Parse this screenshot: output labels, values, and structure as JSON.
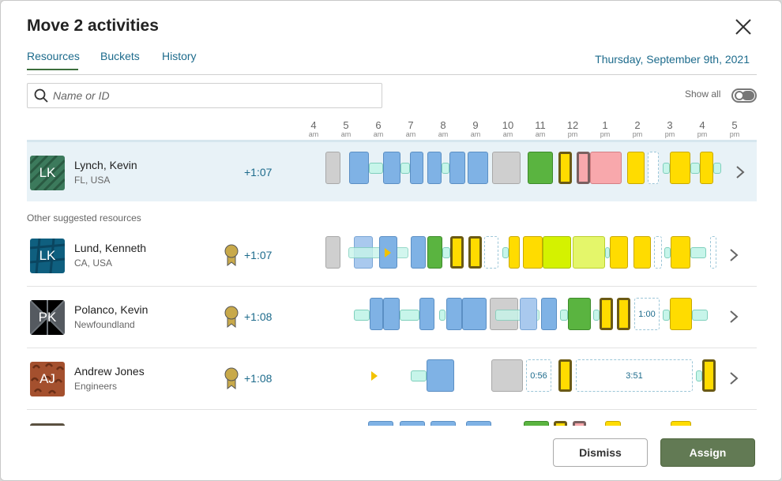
{
  "dialog": {
    "title": "Move 2 activities",
    "date": "Thursday, September 9th, 2021"
  },
  "tabs": [
    {
      "label": "Resources"
    },
    {
      "label": "Buckets"
    },
    {
      "label": "History"
    }
  ],
  "search": {
    "placeholder": "Name or ID",
    "value": ""
  },
  "show_all": {
    "label": "Show all",
    "on": false
  },
  "hours": [
    {
      "h": "4",
      "ap": "am"
    },
    {
      "h": "5",
      "ap": "am"
    },
    {
      "h": "6",
      "ap": "am"
    },
    {
      "h": "7",
      "ap": "am"
    },
    {
      "h": "8",
      "ap": "am"
    },
    {
      "h": "9",
      "ap": "am"
    },
    {
      "h": "10",
      "ap": "am"
    },
    {
      "h": "11",
      "ap": "am"
    },
    {
      "h": "12",
      "ap": "pm"
    },
    {
      "h": "1",
      "ap": "pm"
    },
    {
      "h": "2",
      "ap": "pm"
    },
    {
      "h": "3",
      "ap": "pm"
    },
    {
      "h": "4",
      "ap": "pm"
    },
    {
      "h": "5",
      "ap": "pm"
    }
  ],
  "section_label": "Other suggested resources",
  "resources": [
    {
      "initials": "LK",
      "name": "Lynch, Kevin",
      "location": "FL, USA",
      "delta": "+1:07",
      "medal": false,
      "avatar_color": "#3c7a5c"
    },
    {
      "initials": "LK",
      "name": "Lund, Kenneth",
      "location": "CA, USA",
      "delta": "+1:07",
      "medal": true,
      "avatar_color": "#0f5f7f"
    },
    {
      "initials": "PK",
      "name": "Polanco, Kevin",
      "location": "Newfoundland",
      "delta": "+1:08",
      "medal": true,
      "avatar_color": "#555a60"
    },
    {
      "initials": "AJ",
      "name": "Andrew Jones",
      "location": "Engineers",
      "delta": "+1:08",
      "medal": true,
      "avatar_color": "#a4502e"
    }
  ],
  "gap_labels": {
    "polanco_gap": "1:00",
    "jones_gap1": "0:56",
    "jones_gap2": "3:51"
  },
  "buttons": {
    "dismiss": "Dismiss",
    "assign": "Assign"
  },
  "colors": {
    "accent": "#1d6b8c",
    "assign": "#627a54",
    "highlight": "#e8f2f7"
  }
}
